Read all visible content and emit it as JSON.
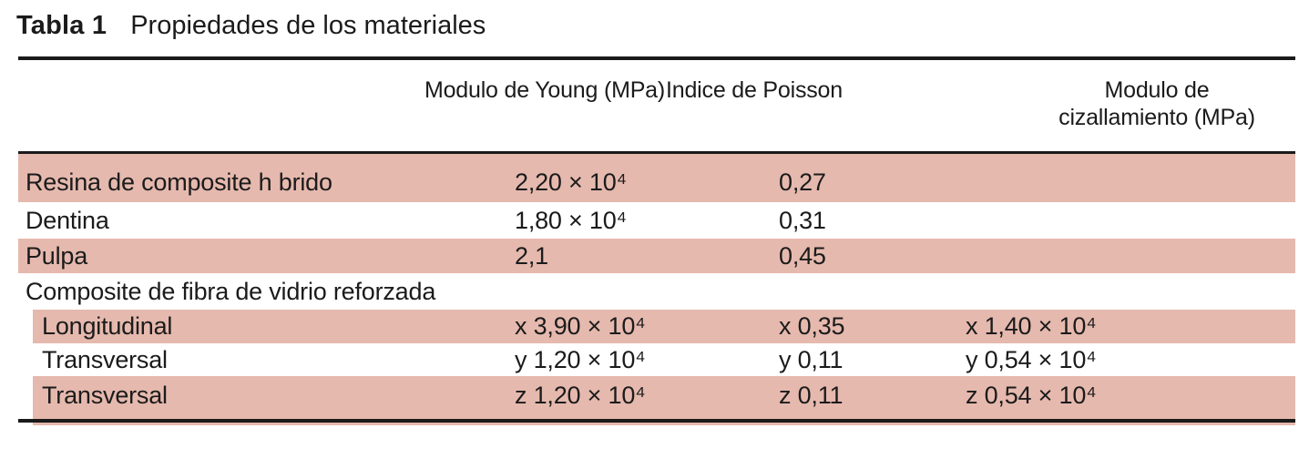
{
  "colors": {
    "shade": "#e6b9ae",
    "rule": "#1a1a1a",
    "text": "#1b1b1b",
    "bg": "#ffffff"
  },
  "caption": {
    "label": "Tabla 1",
    "title": "Propiedades de los materiales"
  },
  "table": {
    "headers": {
      "material": "",
      "young": "Modulo de Young (MPa)",
      "poisson": "Indice de Poisson",
      "shear": "Modulo de cizallamiento (MPa)"
    },
    "rows": [
      {
        "material": "Resina de composite h brido",
        "young": "2,20 × 10⁴",
        "poisson": "0,27",
        "shear": "",
        "shaded": true,
        "indent": false
      },
      {
        "material": "Dentina",
        "young": "1,80 × 10⁴",
        "poisson": "0,31",
        "shear": "",
        "shaded": false,
        "indent": false
      },
      {
        "material": "Pulpa",
        "young": "2,1",
        "poisson": "0,45",
        "shear": "",
        "shaded": true,
        "indent": false
      },
      {
        "material": "Composite de fibra de vidrio reforzada",
        "young": "",
        "poisson": "",
        "shear": "",
        "shaded": false,
        "indent": false
      },
      {
        "material": "Longitudinal",
        "young": "x 3,90 × 10⁴",
        "poisson": "x 0,35",
        "shear": "x 1,40 × 10⁴",
        "shaded": true,
        "indent": true
      },
      {
        "material": "Transversal",
        "young": "y 1,20 × 10⁴",
        "poisson": "y 0,11",
        "shear": "y 0,54 × 10⁴",
        "shaded": false,
        "indent": true
      },
      {
        "material": "Transversal",
        "young": "z 1,20 × 10⁴",
        "poisson": "z 0,11",
        "shear": "z 0,54 × 10⁴",
        "shaded": true,
        "indent": true
      }
    ]
  }
}
